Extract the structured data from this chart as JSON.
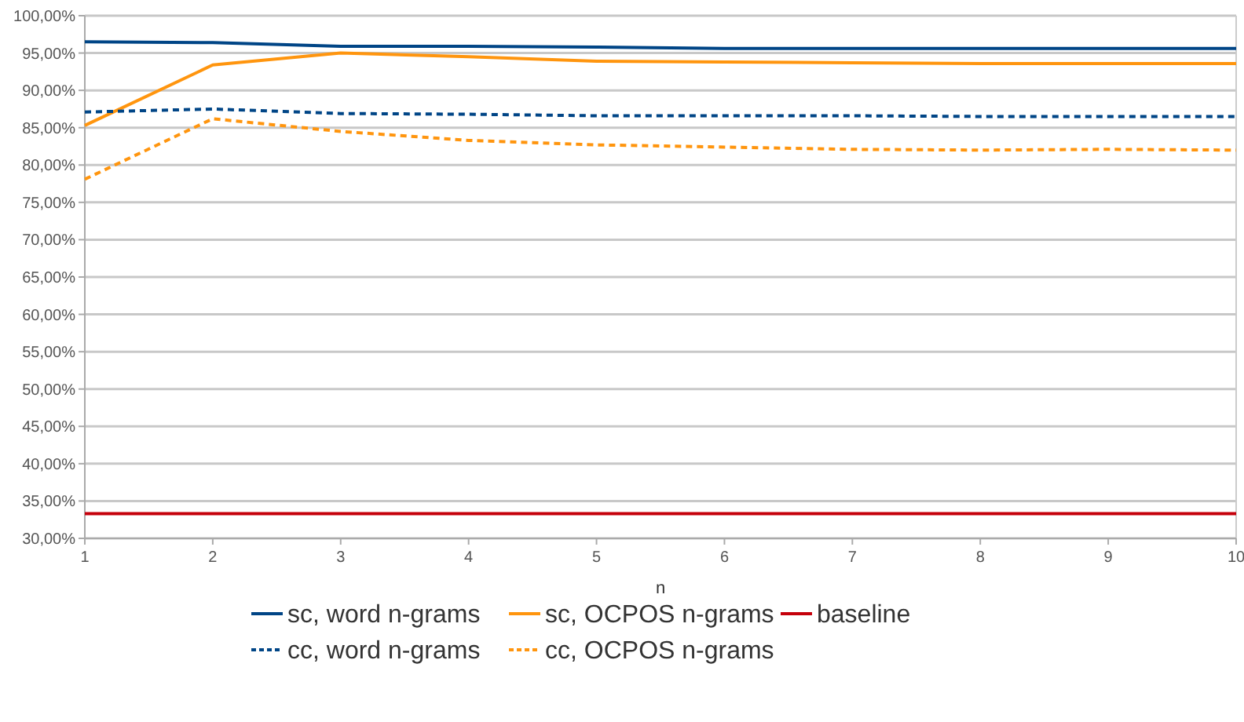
{
  "chart_data": {
    "type": "line",
    "xlabel": "n",
    "x": [
      1,
      2,
      3,
      4,
      5,
      6,
      7,
      8,
      9,
      10
    ],
    "xlim": [
      1,
      10
    ],
    "xticks": [
      1,
      2,
      3,
      4,
      5,
      6,
      7,
      8,
      9,
      10
    ],
    "ylim": [
      30,
      100
    ],
    "yticks": [
      {
        "value": 30,
        "label": "30,00%"
      },
      {
        "value": 35,
        "label": "35,00%"
      },
      {
        "value": 40,
        "label": "40,00%"
      },
      {
        "value": 45,
        "label": "45,00%"
      },
      {
        "value": 50,
        "label": "50,00%"
      },
      {
        "value": 55,
        "label": "55,00%"
      },
      {
        "value": 60,
        "label": "60,00%"
      },
      {
        "value": 65,
        "label": "65,00%"
      },
      {
        "value": 70,
        "label": "70,00%"
      },
      {
        "value": 75,
        "label": "75,00%"
      },
      {
        "value": 80,
        "label": "80,00%"
      },
      {
        "value": 85,
        "label": "85,00%"
      },
      {
        "value": 90,
        "label": "90,00%"
      },
      {
        "value": 95,
        "label": "95,00%"
      },
      {
        "value": 100,
        "label": "100,00%"
      }
    ],
    "grid": "y",
    "legend": "bottom",
    "marker": "none",
    "series": [
      {
        "name": "sc, word n-grams",
        "color": "#004586",
        "line_style": "solid",
        "values": [
          96.5,
          96.4,
          95.9,
          95.9,
          95.8,
          95.6,
          95.6,
          95.6,
          95.6,
          95.6
        ]
      },
      {
        "name": "sc, OCPOS n-grams",
        "color": "#ff950e",
        "line_style": "solid",
        "values": [
          85.3,
          93.4,
          95.0,
          94.5,
          93.9,
          93.8,
          93.7,
          93.6,
          93.6,
          93.6
        ]
      },
      {
        "name": "baseline",
        "color": "#c5000b",
        "line_style": "solid",
        "values": [
          33.3,
          33.3,
          33.3,
          33.3,
          33.3,
          33.3,
          33.3,
          33.3,
          33.3,
          33.3
        ]
      },
      {
        "name": "cc, word n-grams",
        "color": "#004586",
        "line_style": "dashed",
        "values": [
          87.1,
          87.5,
          86.9,
          86.8,
          86.6,
          86.6,
          86.6,
          86.5,
          86.5,
          86.5
        ]
      },
      {
        "name": "cc, OCPOS n-grams",
        "color": "#ff950e",
        "line_style": "dashed",
        "values": [
          78.1,
          86.2,
          84.5,
          83.3,
          82.7,
          82.4,
          82.1,
          82.0,
          82.1,
          82.0
        ]
      }
    ]
  }
}
